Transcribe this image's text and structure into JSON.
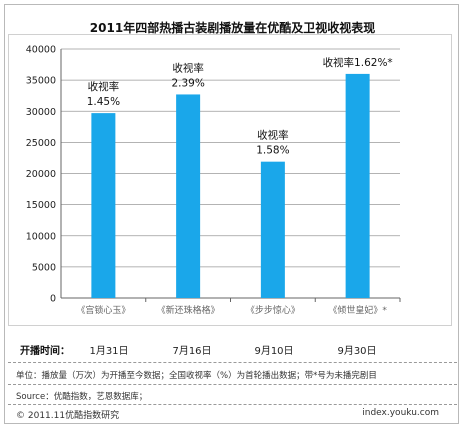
{
  "chart_data": {
    "type": "bar",
    "title": "2011年四部热播古装剧播放量在优酷及卫视收视表现",
    "categories": [
      "《宫锁心玉》",
      "《新还珠格格》",
      "《步步惊心》",
      "《倾世皇妃》*"
    ],
    "values": [
      29700,
      32700,
      21900,
      36000
    ],
    "bar_labels": [
      [
        "收视率",
        "1.45%"
      ],
      [
        "收视率",
        "2.39%"
      ],
      [
        "收视率",
        "1.58%"
      ],
      [
        "收视率1.62%*"
      ]
    ],
    "yticks": [
      "0",
      "5000",
      "10000",
      "15000",
      "20000",
      "25000",
      "30000",
      "35000",
      "40000"
    ],
    "ylim": [
      0,
      40000
    ],
    "grid": true,
    "bar_color": "#1aa7ea"
  },
  "airing": {
    "label": "开播时间：",
    "dates": [
      "1月31日",
      "7月16日",
      "9月10日",
      "9月30日"
    ]
  },
  "footer": {
    "unit_note": "单位：播放量（万次）为开播至今数据；全国收视率（%）为首轮播出数据；带*号为未播完剧目",
    "source": "Source：优酷指数，艺恩数据库；",
    "copyright": "© 2011.11优酷指数研究",
    "website": "index.youku.com"
  }
}
